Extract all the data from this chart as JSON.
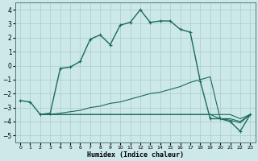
{
  "xlabel": "Humidex (Indice chaleur)",
  "background_color": "#cce8e8",
  "grid_color": "#aacccc",
  "line_color": "#1a6b5a",
  "xlim": [
    -0.5,
    23.5
  ],
  "ylim": [
    -5.5,
    4.5
  ],
  "xticks": [
    0,
    1,
    2,
    3,
    4,
    5,
    6,
    7,
    8,
    9,
    10,
    11,
    12,
    13,
    14,
    15,
    16,
    17,
    18,
    19,
    20,
    21,
    22,
    23
  ],
  "yticks": [
    -5,
    -4,
    -3,
    -2,
    -1,
    0,
    1,
    2,
    3,
    4
  ],
  "curve1_x": [
    0,
    1,
    2,
    3,
    4,
    5,
    6,
    7,
    8,
    9,
    10,
    11,
    12,
    13,
    14,
    15,
    16,
    17,
    18,
    19,
    20,
    21,
    22,
    23
  ],
  "curve1_y": [
    -2.5,
    -2.6,
    -3.5,
    -3.4,
    -0.2,
    -0.1,
    0.3,
    1.9,
    2.2,
    1.5,
    2.9,
    3.1,
    4.0,
    3.1,
    3.2,
    3.2,
    2.6,
    2.4,
    -1.1,
    -3.8,
    -3.8,
    -4.0,
    -4.7,
    -3.5
  ],
  "curve2_x": [
    2,
    3,
    4,
    5,
    6,
    7,
    8,
    9,
    10,
    11,
    12,
    13,
    14,
    15,
    16,
    17,
    18,
    19,
    20,
    21,
    22,
    23
  ],
  "curve2_y": [
    -3.5,
    -3.5,
    -3.5,
    -3.5,
    -3.5,
    -3.5,
    -3.5,
    -3.5,
    -3.5,
    -3.5,
    -3.5,
    -3.5,
    -3.5,
    -3.5,
    -3.5,
    -3.5,
    -3.5,
    -3.5,
    -3.5,
    -3.5,
    -3.8,
    -3.5
  ],
  "curve3_x": [
    2,
    3,
    4,
    5,
    6,
    7,
    8,
    9,
    10,
    11,
    12,
    13,
    14,
    15,
    16,
    17,
    18,
    19,
    20,
    21,
    22,
    23
  ],
  "curve3_y": [
    -3.5,
    -3.5,
    -3.4,
    -3.3,
    -3.2,
    -3.0,
    -2.9,
    -2.7,
    -2.6,
    -2.4,
    -2.2,
    -2.0,
    -1.9,
    -1.7,
    -1.5,
    -1.2,
    -1.0,
    -0.8,
    -3.8,
    -3.8,
    -4.0,
    -3.5
  ],
  "curve4_x": [
    2,
    3,
    4,
    5,
    6,
    7,
    8,
    9,
    10,
    11,
    12,
    13,
    14,
    15,
    16,
    17,
    18,
    19,
    20,
    21,
    22,
    23
  ],
  "curve4_y": [
    -3.5,
    -3.5,
    -3.5,
    -3.5,
    -3.5,
    -3.5,
    -3.5,
    -3.5,
    -3.5,
    -3.5,
    -3.5,
    -3.5,
    -3.5,
    -3.5,
    -3.5,
    -3.5,
    -3.5,
    -3.5,
    -3.8,
    -3.9,
    -4.1,
    -3.5
  ]
}
